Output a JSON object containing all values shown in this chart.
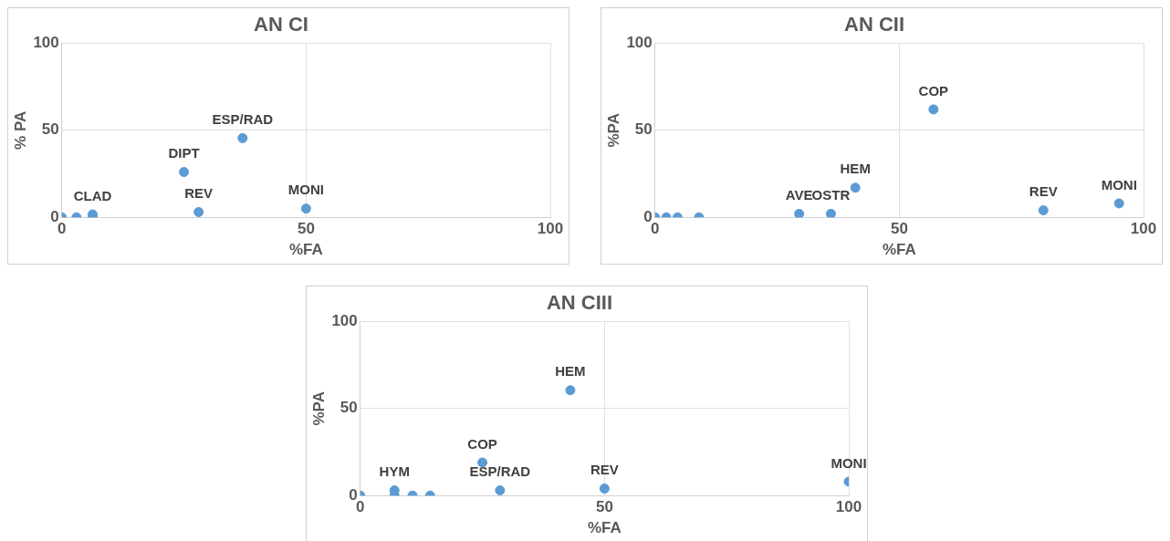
{
  "chart_data": [
    {
      "type": "scatter",
      "title": "AN CI",
      "xlabel": "%FA",
      "ylabel": "% PA",
      "xlim": [
        0,
        100
      ],
      "ylim": [
        0,
        100
      ],
      "xticks": [
        0,
        50,
        100
      ],
      "yticks": [
        0,
        50,
        100
      ],
      "grid": true,
      "marker": "circle",
      "series": [
        {
          "color": "#5b9bd5",
          "x": [
            0,
            3,
            6.3,
            6.3,
            25,
            28,
            37,
            50
          ],
          "values": [
            0,
            0,
            1.7,
            0,
            26,
            3,
            45.5,
            5
          ],
          "value_labels": [
            null,
            null,
            "CLAD",
            null,
            "DIPT",
            "REV",
            "ESP/RAD",
            "MONI"
          ]
        }
      ]
    },
    {
      "type": "scatter",
      "title": "AN CII",
      "xlabel": "%FA",
      "ylabel": "%PA",
      "xlim": [
        0,
        100
      ],
      "ylim": [
        0,
        100
      ],
      "xticks": [
        0,
        50,
        100
      ],
      "yticks": [
        0,
        50,
        100
      ],
      "grid": true,
      "marker": "circle",
      "series": [
        {
          "color": "#5b9bd5",
          "x": [
            0,
            2.3,
            4.6,
            9,
            29.5,
            36,
            41,
            57,
            79.5,
            95
          ],
          "values": [
            0,
            0,
            0,
            0,
            2,
            2,
            17,
            62,
            4,
            8
          ],
          "value_labels": [
            null,
            null,
            null,
            null,
            "AVE",
            "OSTR",
            "HEM",
            "COP",
            "REV",
            "MONI"
          ]
        }
      ]
    },
    {
      "type": "scatter",
      "title": "AN CIII",
      "xlabel": "%FA",
      "ylabel": "%PA",
      "xlim": [
        0,
        100
      ],
      "ylim": [
        0,
        100
      ],
      "xticks": [
        0,
        50,
        100
      ],
      "yticks": [
        0,
        50,
        100
      ],
      "grid": true,
      "marker": "circle",
      "series": [
        {
          "color": "#5b9bd5",
          "x": [
            0,
            7,
            7,
            10.7,
            14.3,
            25,
            28.6,
            43,
            50,
            100
          ],
          "values": [
            0,
            3,
            0,
            0,
            0,
            19,
            3,
            60.5,
            4,
            8
          ],
          "value_labels": [
            null,
            "HYM",
            null,
            null,
            null,
            "COP",
            "ESP/RAD",
            "HEM",
            "REV",
            "MONI"
          ]
        }
      ]
    }
  ]
}
